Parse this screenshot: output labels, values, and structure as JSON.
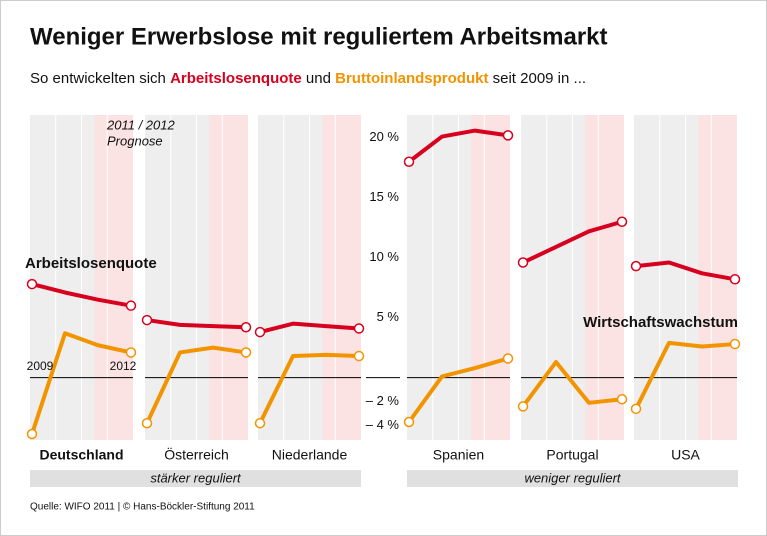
{
  "chart_data": {
    "type": "line",
    "title": "Weniger Erwerbslose mit reguliertem Arbeitsmarkt",
    "subtitle": [
      "So entwickelten sich ",
      "Arbeitslosenquote",
      " und ",
      "Bruttoinlandsprodukt",
      " seit 2009 in ..."
    ],
    "categories": [
      "2009",
      null,
      null,
      "2012"
    ],
    "series": [
      {
        "name": "Arbeitslosenquote",
        "color": "#d7001e"
      },
      {
        "name": "Wirtschaftswachstum",
        "color": "#f29400"
      }
    ],
    "panels": [
      {
        "name": "Deutschland",
        "values": [
          [
            7.8,
            7.1,
            6.5,
            6.0
          ],
          [
            -4.7,
            3.7,
            2.7,
            2.1
          ]
        ]
      },
      {
        "name": "Österreich",
        "values": [
          [
            4.8,
            4.4,
            4.3,
            4.2
          ],
          [
            -3.8,
            2.1,
            2.5,
            2.1
          ]
        ]
      },
      {
        "name": "Niederlande",
        "values": [
          [
            3.8,
            4.5,
            4.3,
            4.1
          ],
          [
            -3.8,
            1.8,
            1.9,
            1.8
          ]
        ]
      },
      {
        "name": "Spanien",
        "values": [
          [
            18.0,
            20.1,
            20.6,
            20.2
          ],
          [
            -3.7,
            0.1,
            0.8,
            1.6
          ]
        ]
      },
      {
        "name": "Portugal",
        "values": [
          [
            9.6,
            10.9,
            12.2,
            13.0
          ],
          [
            -2.4,
            1.3,
            -2.1,
            -1.8
          ]
        ]
      },
      {
        "name": "USA",
        "values": [
          [
            9.3,
            9.6,
            8.7,
            8.2
          ],
          [
            -2.6,
            2.9,
            2.6,
            2.8
          ]
        ]
      }
    ],
    "groups": [
      "stärker reguliert",
      "weniger reguliert"
    ],
    "forecast_label": [
      "2011 / 2012",
      "Prognose"
    ],
    "ylim": [
      -5.2,
      21.9
    ],
    "yticks": [
      {
        "value": 20,
        "label": "20 %"
      },
      {
        "value": 15,
        "label": "15 %"
      },
      {
        "value": 10,
        "label": "10 %"
      },
      {
        "value": 5,
        "label": "5 %"
      },
      {
        "value": -2,
        "label": "– 2 %"
      },
      {
        "value": -4,
        "label": "– 4 %"
      }
    ],
    "source": "Quelle: WIFO 2011 | © Hans-Böckler-Stiftung 2011"
  }
}
